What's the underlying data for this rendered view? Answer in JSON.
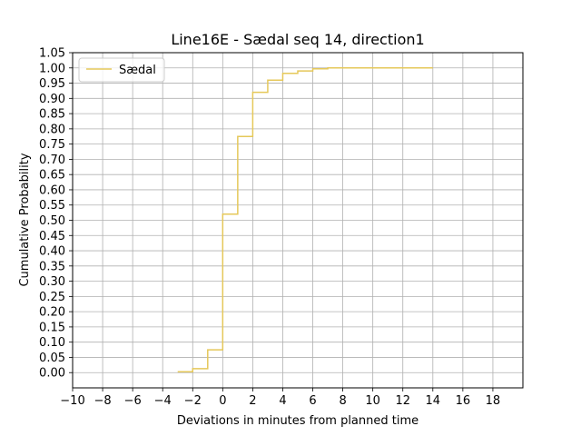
{
  "chart_data": {
    "type": "line",
    "subtype": "step-cdf",
    "title": "Line16E - Sædal seq 14, direction1",
    "xlabel": "Deviations in minutes from planned time",
    "ylabel": "Cumulative Probability",
    "xlim": [
      -10,
      20
    ],
    "ylim": [
      -0.05,
      1.05
    ],
    "xticks": [
      -10,
      -8,
      -6,
      -4,
      -2,
      0,
      2,
      4,
      6,
      8,
      10,
      12,
      14,
      16,
      18
    ],
    "xtick_labels": [
      "−10",
      "−8",
      "−6",
      "−4",
      "−2",
      "0",
      "2",
      "4",
      "6",
      "8",
      "10",
      "12",
      "14",
      "16",
      "18"
    ],
    "yticks": [
      0.0,
      0.05,
      0.1,
      0.15,
      0.2,
      0.25,
      0.3,
      0.35,
      0.4,
      0.45,
      0.5,
      0.55,
      0.6,
      0.65,
      0.7,
      0.75,
      0.8,
      0.85,
      0.9,
      0.95,
      1.0,
      1.05
    ],
    "ytick_labels": [
      "0.00",
      "0.05",
      "0.10",
      "0.15",
      "0.20",
      "0.25",
      "0.30",
      "0.35",
      "0.40",
      "0.45",
      "0.50",
      "0.55",
      "0.60",
      "0.65",
      "0.70",
      "0.75",
      "0.80",
      "0.85",
      "0.90",
      "0.95",
      "1.00",
      "1.05"
    ],
    "grid": true,
    "legend_position": "top-left",
    "series": [
      {
        "name": "Sædal",
        "color": "#e5c85a",
        "x": [
          -3,
          -2,
          -1,
          0,
          1,
          2,
          3,
          4,
          5,
          6,
          7,
          14
        ],
        "y": [
          0.003,
          0.013,
          0.075,
          0.52,
          0.775,
          0.92,
          0.96,
          0.982,
          0.99,
          0.997,
          1.0,
          1.0
        ]
      }
    ]
  }
}
